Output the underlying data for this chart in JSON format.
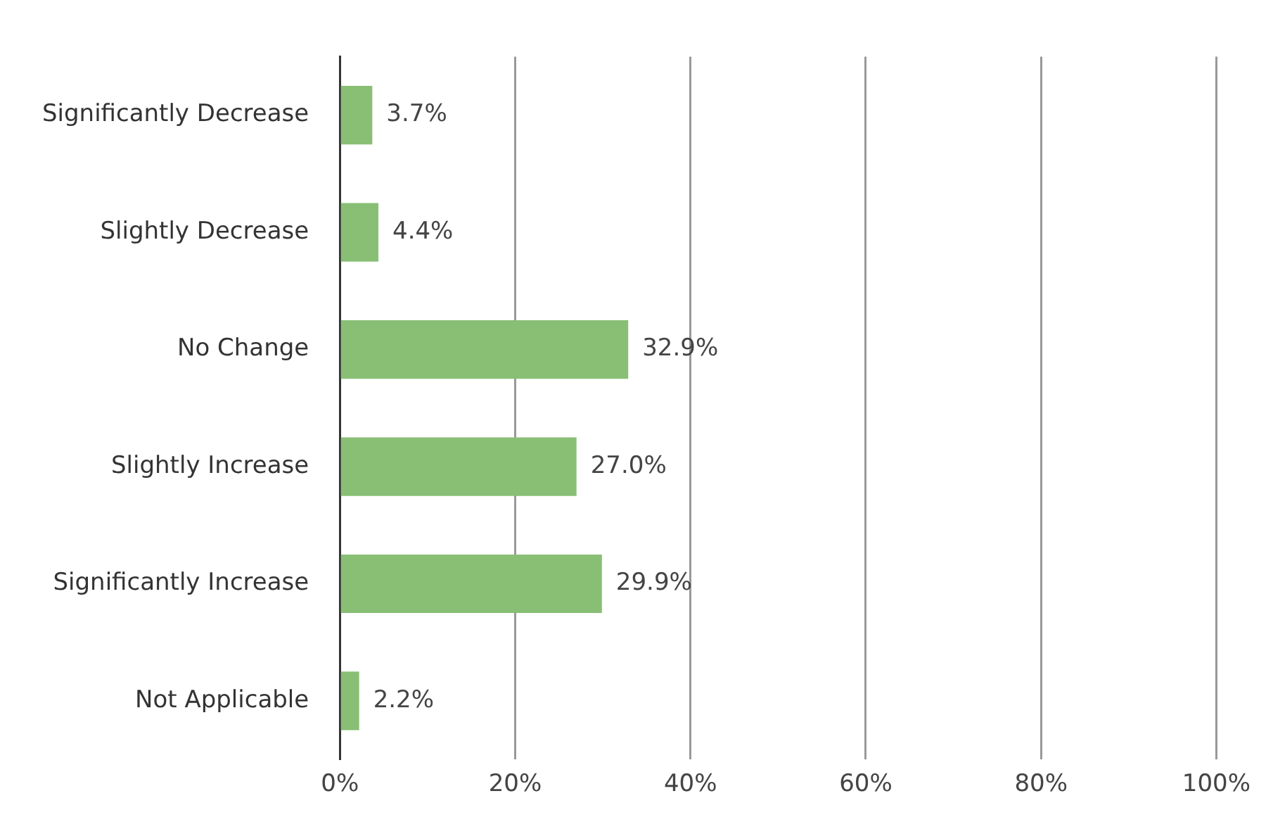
{
  "chart_data": {
    "type": "bar",
    "orientation": "horizontal",
    "categories": [
      "Significantly Decrease",
      "Slightly Decrease",
      "No Change",
      "Slightly Increase",
      "Significantly Increase",
      "Not Applicable"
    ],
    "values": [
      3.7,
      4.4,
      32.9,
      27.0,
      29.9,
      2.2
    ],
    "value_labels": [
      "3.7%",
      "4.4%",
      "32.9%",
      "27.0%",
      "29.9%",
      "2.2%"
    ],
    "color": "#88bf75",
    "xlim": [
      0,
      100
    ],
    "xticks": [
      {
        "value": 0,
        "label": "0%"
      },
      {
        "value": 20,
        "label": "20%"
      },
      {
        "value": 40,
        "label": "40%"
      },
      {
        "value": 60,
        "label": "60%"
      },
      {
        "value": 80,
        "label": "80%"
      },
      {
        "value": 100,
        "label": "100%"
      }
    ],
    "grid": "x",
    "legend": false
  }
}
